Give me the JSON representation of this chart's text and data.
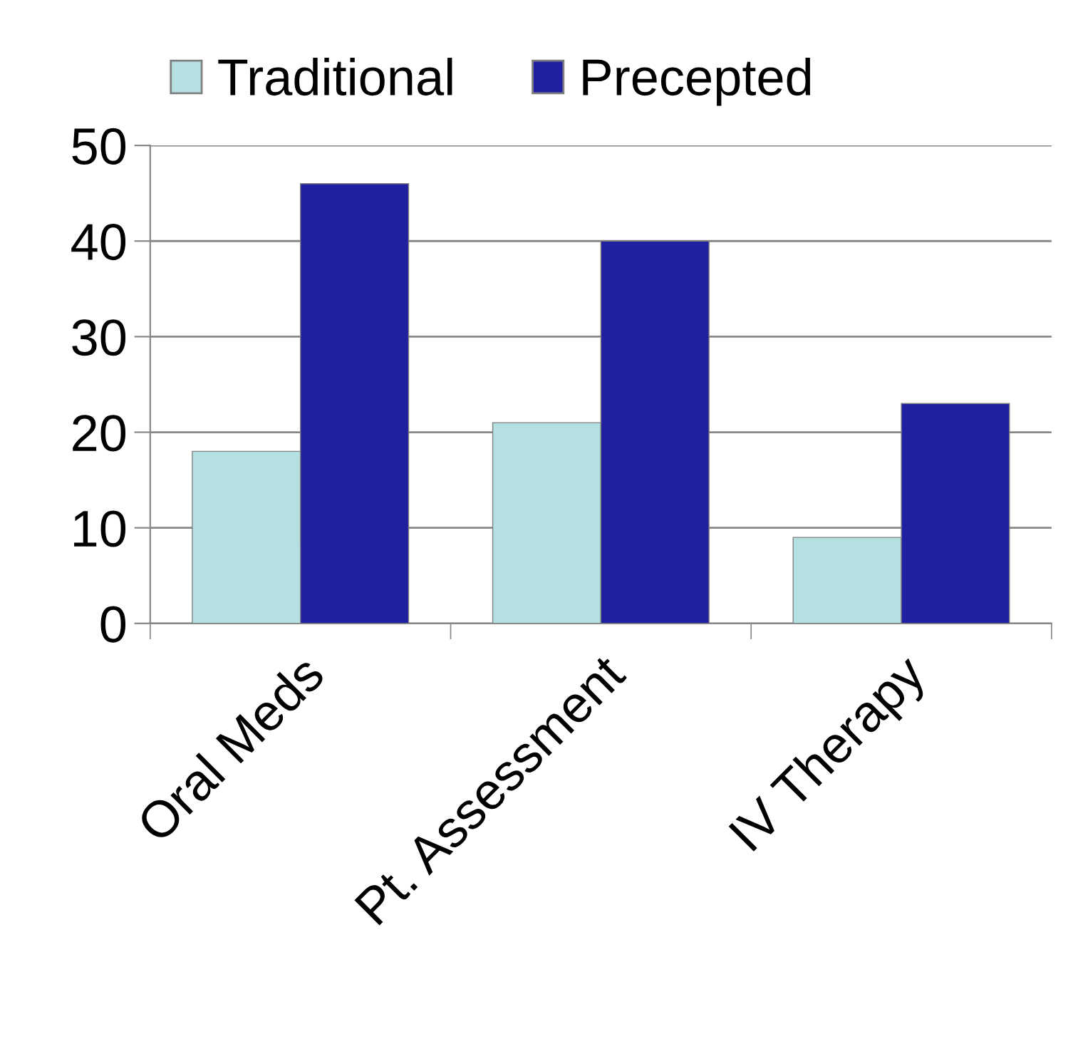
{
  "chart_data": {
    "type": "bar",
    "categories": [
      "Oral Meds",
      "Pt. Assessment",
      "IV Therapy"
    ],
    "series": [
      {
        "name": "Traditional",
        "color": "#b4e0e2",
        "values": [
          18,
          21,
          9
        ]
      },
      {
        "name": "Precepted",
        "color": "#1f1fa0",
        "values": [
          46,
          40,
          23
        ]
      }
    ],
    "ylim": [
      0,
      50
    ],
    "yticks": [
      0,
      10,
      20,
      30,
      40,
      50
    ],
    "grid": "y",
    "legend": "top"
  }
}
